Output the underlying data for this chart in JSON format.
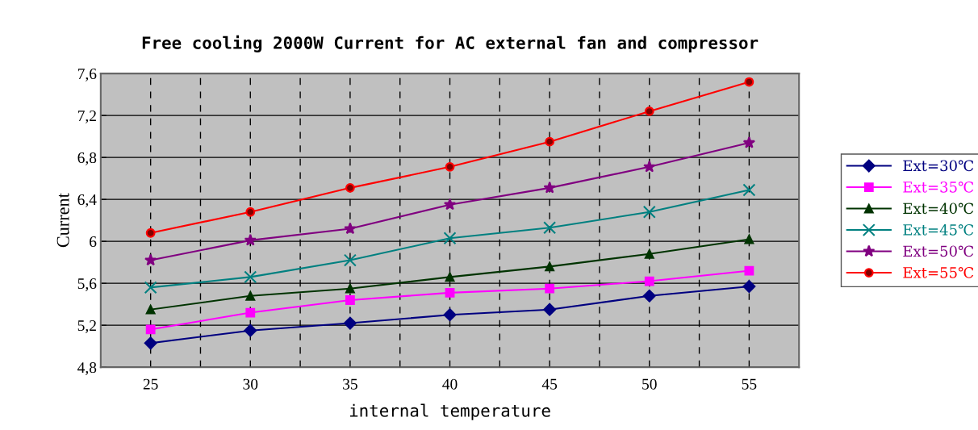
{
  "chart_data": {
    "type": "line",
    "title": "Free cooling 2000W Current for AC external fan and compressor",
    "xlabel": "internal temperature",
    "ylabel": "Current",
    "categories": [
      "25",
      "30",
      "35",
      "40",
      "45",
      "50",
      "55"
    ],
    "series": [
      {
        "name": "Ext=30℃",
        "color": "#000080",
        "marker": "diamond",
        "values": [
          5.03,
          5.15,
          5.22,
          5.3,
          5.35,
          5.48,
          5.57
        ]
      },
      {
        "name": "Ext=35℃",
        "color": "#ff00ff",
        "marker": "square",
        "values": [
          5.16,
          5.32,
          5.44,
          5.51,
          5.55,
          5.62,
          5.72
        ]
      },
      {
        "name": "Ext=40℃",
        "color": "#003300",
        "marker": "triangle",
        "values": [
          5.35,
          5.48,
          5.55,
          5.66,
          5.76,
          5.88,
          6.02
        ]
      },
      {
        "name": "Ext=45℃",
        "color": "#008080",
        "marker": "cross",
        "values": [
          5.56,
          5.66,
          5.82,
          6.03,
          6.13,
          6.28,
          6.49
        ]
      },
      {
        "name": "Ext=50℃",
        "color": "#800080",
        "marker": "star",
        "values": [
          5.82,
          6.01,
          6.12,
          6.35,
          6.51,
          6.71,
          6.94
        ]
      },
      {
        "name": "Ext=55℃",
        "color": "#ff0000",
        "marker": "circle",
        "values": [
          6.08,
          6.28,
          6.51,
          6.71,
          6.95,
          7.24,
          7.52
        ]
      }
    ],
    "ylim": [
      4.8,
      7.6
    ],
    "yticks": [
      {
        "value": 4.8,
        "label": "4,8"
      },
      {
        "value": 5.2,
        "label": "5,2"
      },
      {
        "value": 5.6,
        "label": "5,6"
      },
      {
        "value": 6,
        "label": "6"
      },
      {
        "value": 6.4,
        "label": "6,4"
      },
      {
        "value": 6.8,
        "label": "6,8"
      },
      {
        "value": 7.2,
        "label": "7,2"
      },
      {
        "value": 7.6,
        "label": "7,6"
      }
    ],
    "grid": true,
    "legend": "right",
    "line_style": "solid"
  }
}
